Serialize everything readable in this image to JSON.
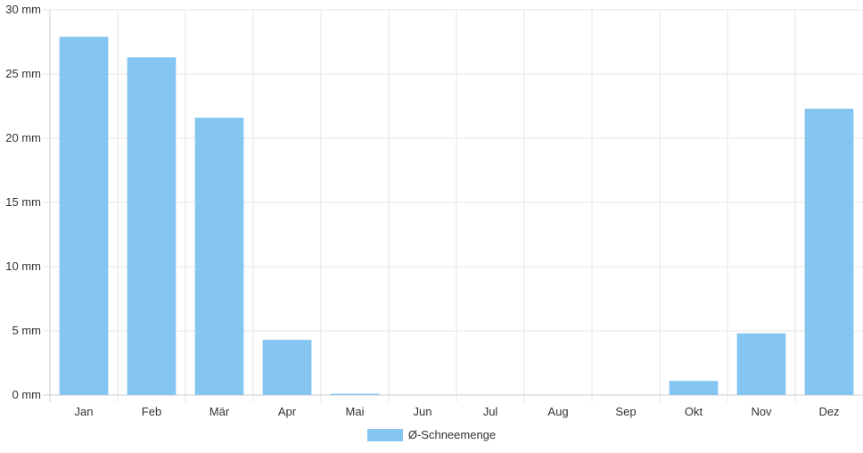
{
  "chart_data": {
    "type": "bar",
    "categories": [
      "Jan",
      "Feb",
      "Mär",
      "Apr",
      "Mai",
      "Jun",
      "Jul",
      "Aug",
      "Sep",
      "Okt",
      "Nov",
      "Dez"
    ],
    "series": [
      {
        "name": "Ø-Schneemenge",
        "values": [
          27.9,
          26.3,
          21.6,
          4.3,
          0.1,
          0,
          0,
          0,
          0,
          1.1,
          4.8,
          22.3
        ]
      }
    ],
    "y_ticks": [
      "0 mm",
      "5 mm",
      "10 mm",
      "15 mm",
      "20 mm",
      "25 mm",
      "30 mm"
    ],
    "ylim": [
      0,
      30
    ],
    "grid": true,
    "legend_position": "bottom",
    "colors": {
      "bar": "#85c5f2",
      "grid": "#e5e5e5",
      "axis": "#cccccc",
      "text": "#333333"
    }
  }
}
